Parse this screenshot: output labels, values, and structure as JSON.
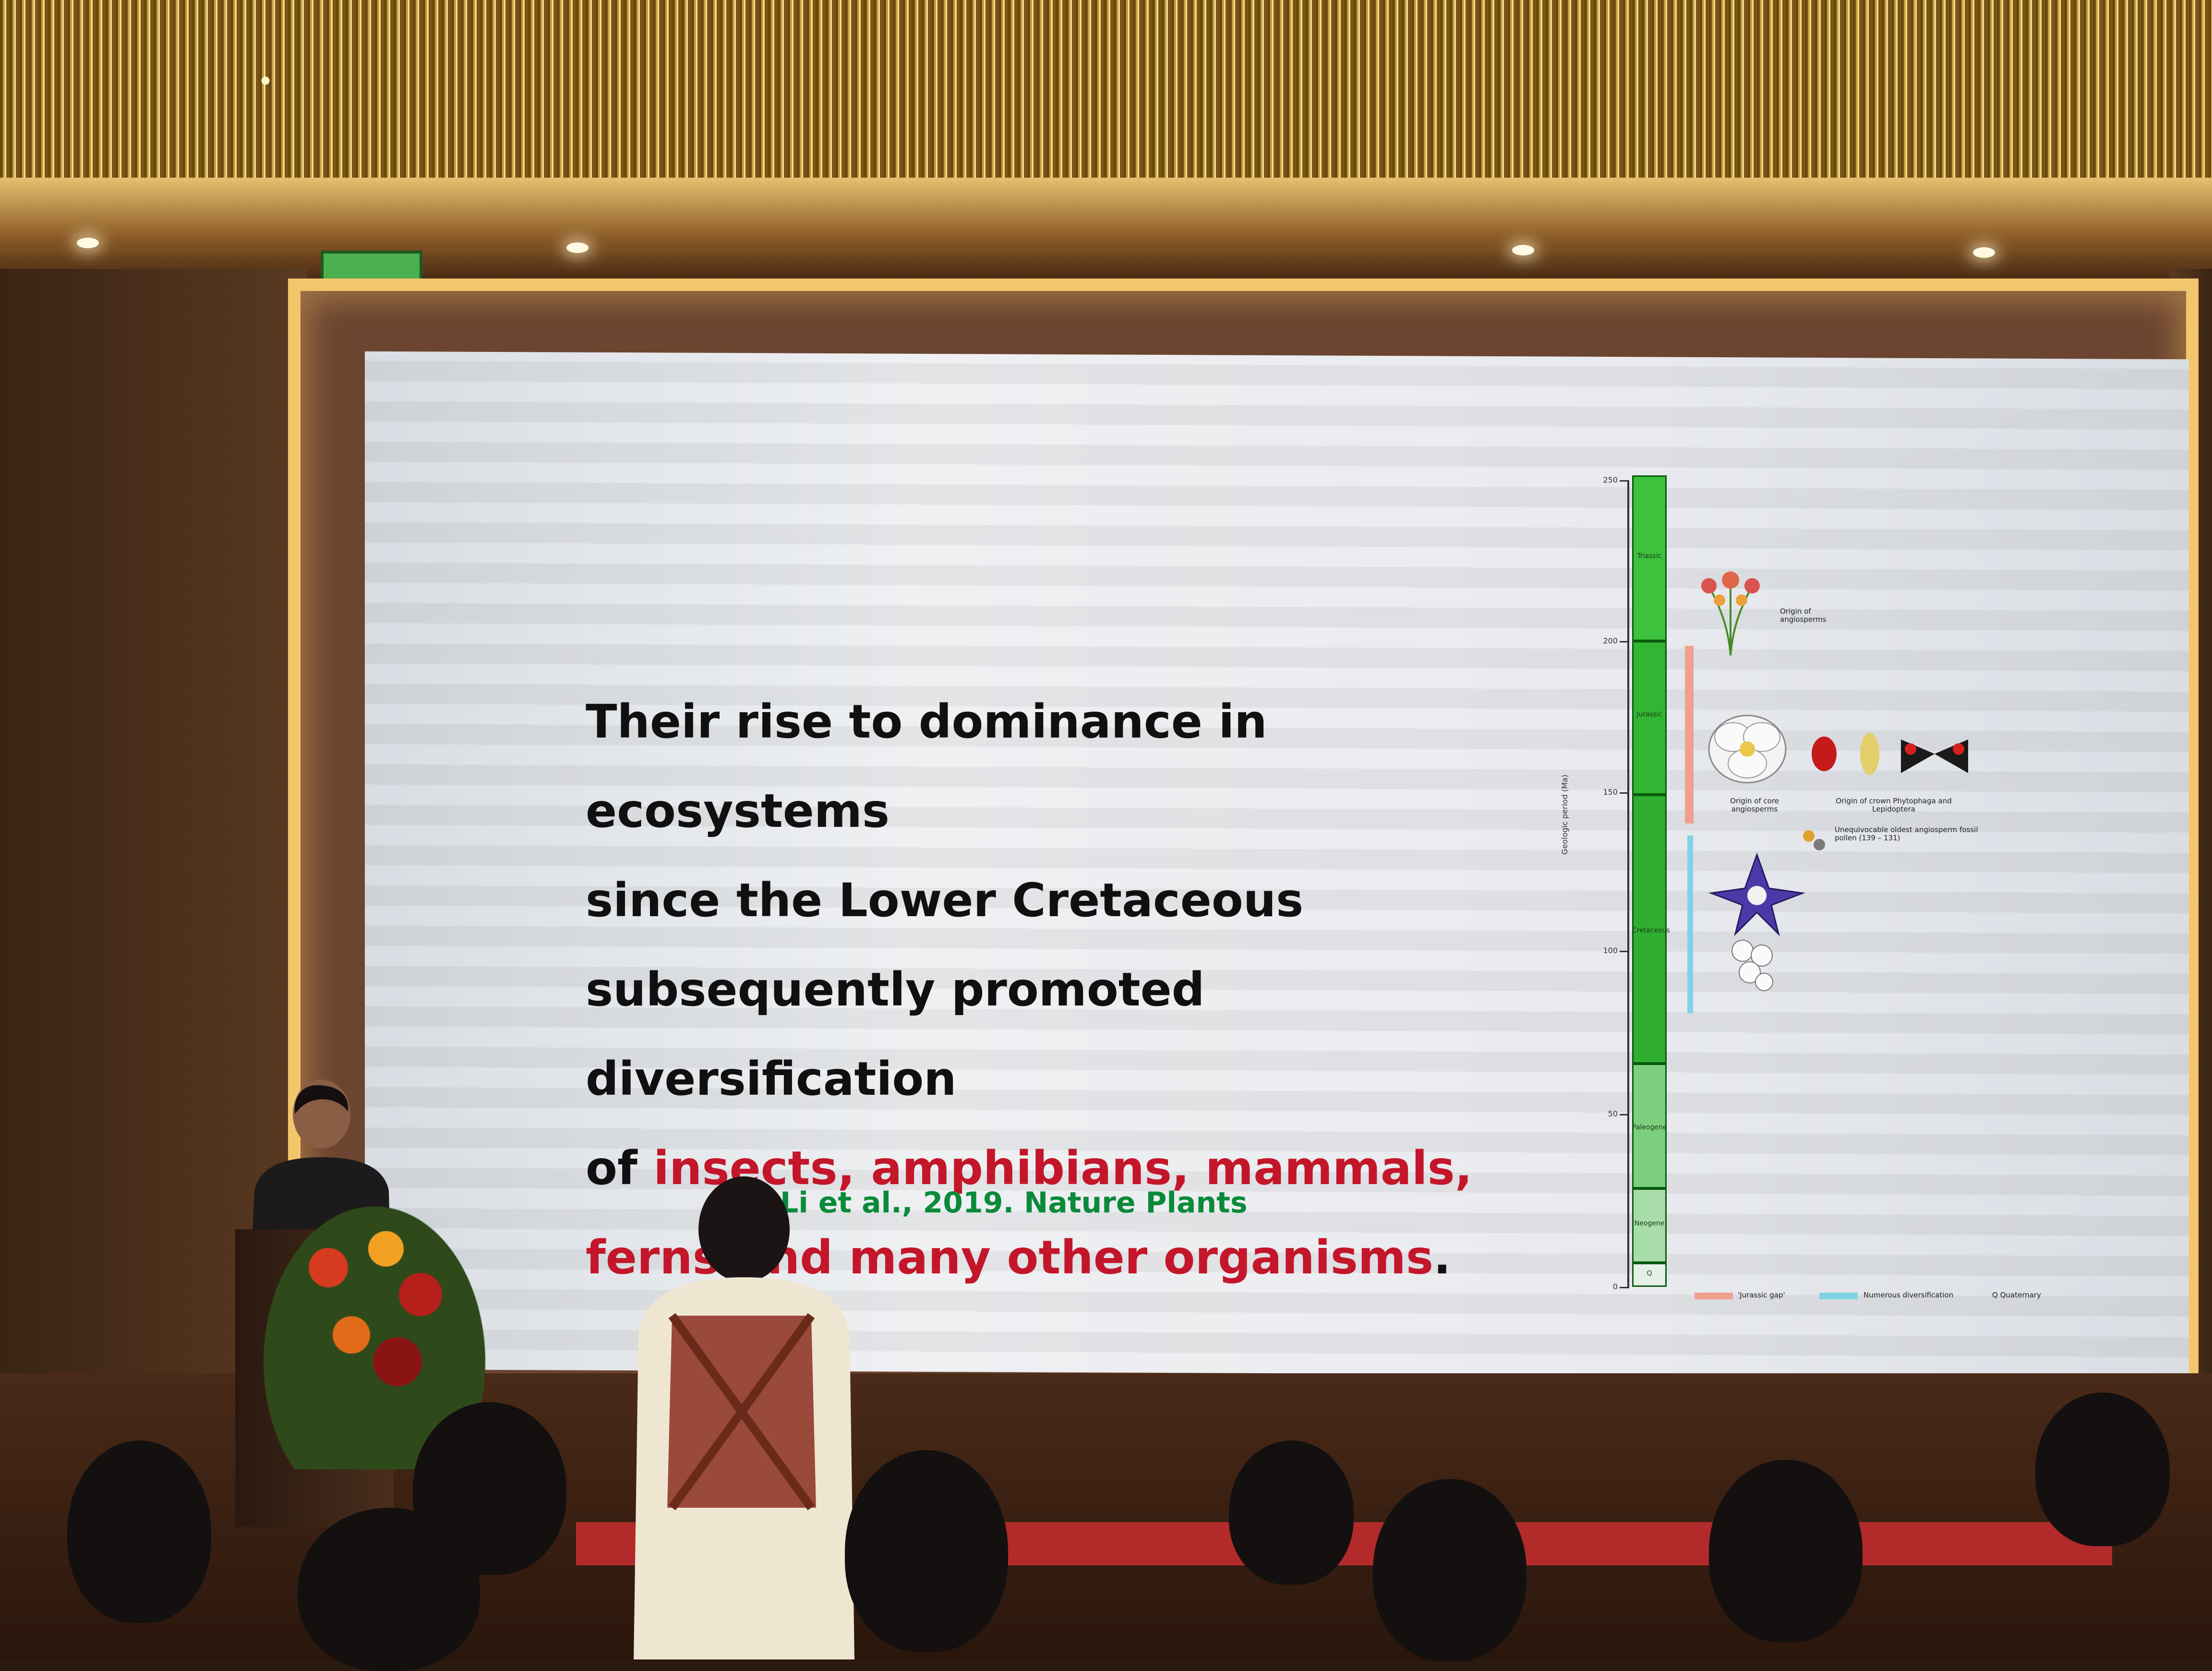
{
  "slide": {
    "line1": "Their rise to dominance in ecosystems",
    "line2": "since the Lower Cretaceous",
    "line3": "subsequently promoted diversification",
    "line4_prefix": "of ",
    "line4_highlight": "insects, amphibians, mammals,",
    "line5_highlight": "ferns and many other organisms",
    "line5_suffix": ".",
    "citation": "Li et al., 2019. Nature Plants",
    "highlight_color": "#c4162a",
    "citation_color": "#0b8a3a"
  },
  "figure": {
    "axis_title": "Geologic period (Ma)",
    "ticks": [
      "250",
      "200",
      "150",
      "100",
      "50",
      "0"
    ],
    "periods": [
      "Triassic",
      "Jurassic",
      "Cretaceous",
      "Paleogene",
      "Neogene",
      "Q"
    ],
    "period_color": "#3cc23c",
    "notes": {
      "origin_angiosperms": "Origin of angiosperms",
      "origin_core": "Origin of core angiosperms",
      "origin_crown": "Origin of crown Phytophaga and Lepidoptera",
      "pollen": "Unequivocable oldest angiosperm fossil pollen (139 – 131)"
    },
    "legend": {
      "jurassic_gap": "'Jurassic gap'",
      "numerous_diversification": "Numerous diversification",
      "quaternary": "Q  Quaternary"
    }
  }
}
